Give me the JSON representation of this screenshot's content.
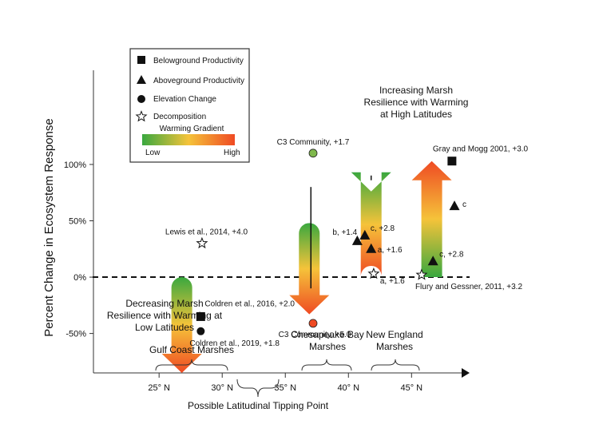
{
  "chart_data": {
    "type": "scatter",
    "ylabel": "Percent Change in Ecosystem Response",
    "x_ticks": [
      {
        "lat": 25,
        "label": "25° N"
      },
      {
        "lat": 30,
        "label": "30° N"
      },
      {
        "lat": 35,
        "label": "35° N"
      },
      {
        "lat": 40,
        "label": "40° N"
      },
      {
        "lat": 45,
        "label": "45° N"
      }
    ],
    "y_ticks": [
      {
        "value": 100,
        "label": "100%"
      },
      {
        "value": 50,
        "label": "50%"
      },
      {
        "value": 0,
        "label": "0%"
      },
      {
        "value": -50,
        "label": "-50%"
      }
    ],
    "xlim": [
      19.8,
      49.6
    ],
    "ylim": [
      -85,
      185
    ],
    "legend": {
      "items": [
        {
          "marker": "square",
          "label": "Belowground Productivity"
        },
        {
          "marker": "triangle",
          "label": "Aboveground Productivity"
        },
        {
          "marker": "circle",
          "label": "Elevation Change"
        },
        {
          "marker": "star",
          "label": "Decomposition"
        }
      ],
      "gradient_title": "Warming Gradient",
      "gradient_low": "Low",
      "gradient_high": "High",
      "color_low": "#3aa83f",
      "color_mid": "#f5c33a",
      "color_high": "#ef4a23"
    },
    "points": [
      {
        "marker": "star",
        "lat": 28.4,
        "value": 30,
        "label": "Lewis et al., 2014, +4.0"
      },
      {
        "marker": "square",
        "lat": 28.3,
        "value": -35,
        "label": "Coldren et al., 2016, +2.0"
      },
      {
        "marker": "circle",
        "lat": 28.3,
        "value": -48,
        "label": "Coldren et al., 2019, +1.8"
      },
      {
        "marker": "circle",
        "lat": 37.2,
        "value": 110,
        "color": "#7fb84c",
        "label": "C3 Community, +1.7"
      },
      {
        "marker": "circle",
        "lat": 37.2,
        "value": -41,
        "color": "#ef4a23",
        "label": "C3 Community, +5.0"
      },
      {
        "marker": "triangle",
        "lat": 40.7,
        "value": 32,
        "label": "b, +1.4"
      },
      {
        "marker": "triangle",
        "lat": 41.3,
        "value": 37,
        "label": "c, +2.8"
      },
      {
        "marker": "triangle",
        "lat": 41.8,
        "value": 25,
        "label": "a, +1.6"
      },
      {
        "marker": "star",
        "lat": 42.0,
        "value": 3,
        "label": "a, +1.6"
      },
      {
        "marker": "square",
        "lat": 48.2,
        "value": 103,
        "label": "Gray and Mogg 2001, +3.0"
      },
      {
        "marker": "triangle",
        "lat": 48.4,
        "value": 63,
        "label": "c"
      },
      {
        "marker": "triangle",
        "lat": 46.7,
        "value": 14,
        "label": "c, +2.8"
      },
      {
        "marker": "star",
        "lat": 45.8,
        "value": 2,
        "label": "Flury and Gessner, 2011, +3.2"
      }
    ],
    "arrows": [
      {
        "lat": 26.8,
        "from": 0,
        "to": -85,
        "direction": "down",
        "gradient": "green-to-red"
      },
      {
        "lat": 36.9,
        "from": 48,
        "to": -33,
        "direction": "down",
        "gradient": "green-to-red"
      },
      {
        "lat": 41.8,
        "from": 10,
        "to": 76,
        "direction": "down",
        "gradient": "green-to-red",
        "tail_line_from": 86
      },
      {
        "lat": 46.6,
        "from": 0,
        "to": 103,
        "direction": "up",
        "gradient": "green-to-red"
      }
    ],
    "annotations": {
      "decreasing": [
        "Decreasing Marsh",
        "Resilience with Warming at",
        "Low Latitudes"
      ],
      "increasing": [
        "Increasing Marsh",
        "Resilience with Warming",
        "at High Latitudes"
      ],
      "regions": [
        {
          "name": [
            "Gulf Coast Marshes"
          ],
          "lat_from": 26.5,
          "lat_to": 30.5
        },
        {
          "name": [
            "Chesapeake Bay",
            "Marshes"
          ],
          "lat_from": 35.5,
          "lat_to": 40.5
        },
        {
          "name": [
            "New England",
            "Marshes"
          ],
          "lat_from": 40.5,
          "lat_to": 45.5
        }
      ],
      "tipping_point": "Possible Latitudinal Tipping Point"
    }
  }
}
